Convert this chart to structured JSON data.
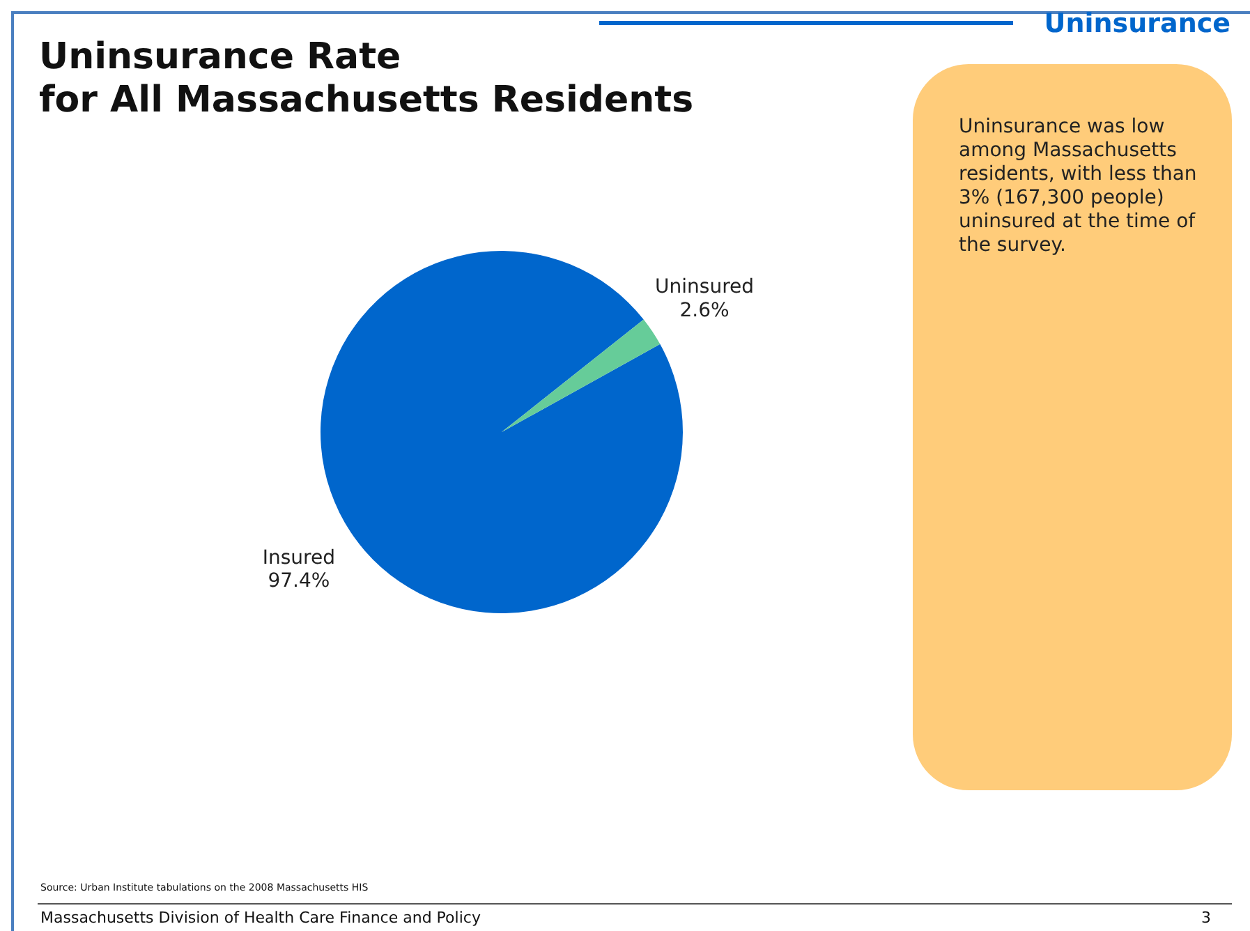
{
  "chart_data": {
    "type": "pie",
    "title": "Uninsurance Rate\nfor All Massachusetts Residents",
    "categories": [
      "Insured",
      "Uninsured"
    ],
    "values": [
      97.4,
      2.6
    ],
    "value_labels": [
      "97.4%",
      "2.6%"
    ],
    "colors": [
      "#0066cc",
      "#66cc99"
    ],
    "legend": false,
    "annotations": [
      "Uninsurance",
      "Uninsurance was low among Massachusetts residents, with less than 3% (167,300 people) uninsured at the time of the survey.",
      "Source: Urban Institute tabulations on the 2008 Massachusetts HIS",
      "Massachusetts Division of Health Care Finance and Policy",
      "3"
    ]
  }
}
